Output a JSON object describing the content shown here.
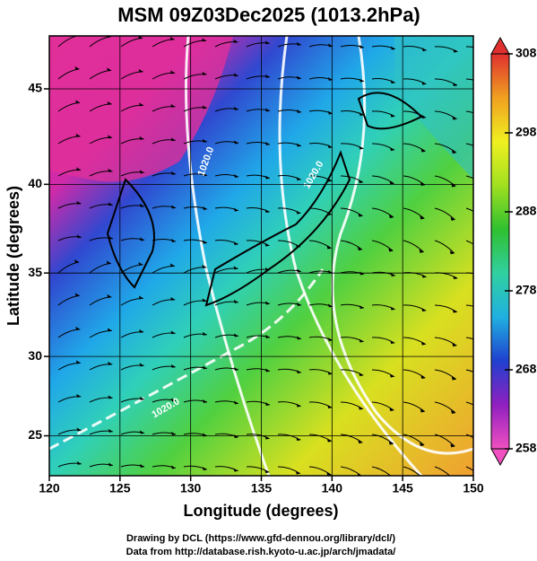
{
  "chart_data": {
    "type": "map",
    "title": "MSM 09Z03Dec2025 (1013.2hPa)",
    "xlabel": "Longitude (degrees)",
    "ylabel": "Latitude  (degrees)",
    "projection": "mercator",
    "xlim": [
      120,
      150
    ],
    "ylim": [
      22.4,
      47.6
    ],
    "xticks": [
      120,
      125,
      130,
      135,
      140,
      145,
      150
    ],
    "yticks": [
      25,
      30,
      35,
      40,
      45
    ],
    "grid": true,
    "colorbar": {
      "lim": [
        258,
        308
      ],
      "ticks": [
        258,
        268,
        278,
        288,
        298,
        308
      ],
      "colormap": [
        "#f050c0",
        "#9020c0",
        "#2040d0",
        "#20b0e0",
        "#30d0a0",
        "#30c030",
        "#a0e020",
        "#f0f020",
        "#f0a020",
        "#e03030"
      ]
    },
    "contour_labels": [
      "1020.0",
      "1020.0",
      "1020.0"
    ],
    "credits": [
      "Drawing by DCL (https://www.gfd-dennou.org/library/dcl/)",
      "Data from http://database.rish.kyoto-u.ac.jp/arch/jmadata/"
    ]
  }
}
